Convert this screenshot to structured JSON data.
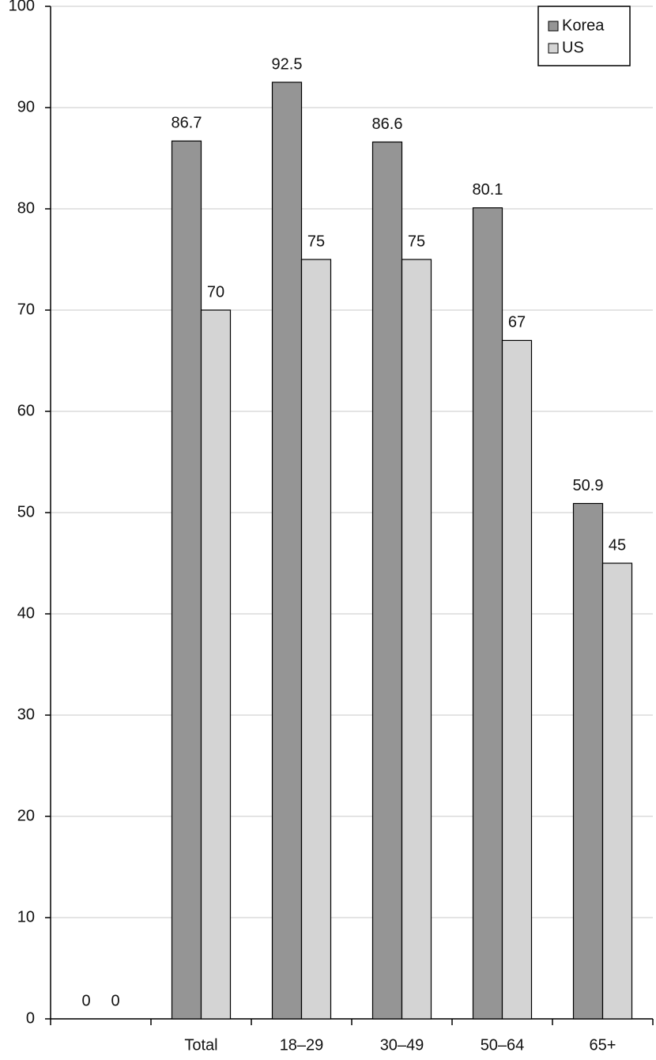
{
  "chart_data": {
    "type": "bar",
    "categories": [
      null,
      "Total",
      "18–29",
      "30–49",
      "50–64",
      "65+"
    ],
    "series": [
      {
        "name": "Korea",
        "color": "#959595",
        "values": [
          0,
          86.7,
          92.5,
          86.6,
          80.1,
          50.9
        ]
      },
      {
        "name": "US",
        "color": "#d4d4d4",
        "values": [
          0,
          70,
          75,
          75,
          67,
          45
        ]
      }
    ],
    "ylim": [
      0,
      100
    ],
    "yticks": [
      0,
      10,
      20,
      30,
      40,
      50,
      60,
      70,
      80,
      90,
      100
    ],
    "grid": true,
    "legend": "top-right"
  }
}
